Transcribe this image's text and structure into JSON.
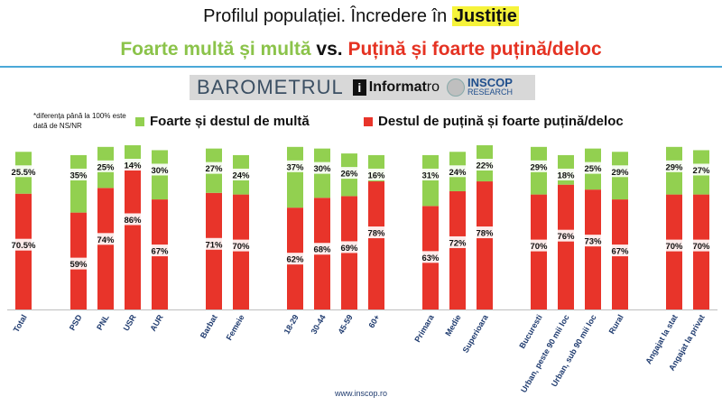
{
  "header": {
    "title_prefix": "Profilul populației. Încredere în",
    "title_highlight": "Justiție",
    "subtitle_green": "Foarte multă și multă",
    "subtitle_vs": "vs.",
    "subtitle_red": "Puțină și foarte puțină/deloc"
  },
  "branding": {
    "barometrul": "BAROMETRUL",
    "informat_i": "i",
    "informat_name": "Informat",
    "informat_suffix": "ro",
    "inscop_name": "INSCOP",
    "inscop_sub": "RESEARCH"
  },
  "note": "*diferența până la 100% este dată de NS/NR",
  "footer_url": "www.inscop.ro",
  "colors": {
    "green": "#92d050",
    "red": "#e8342a",
    "rule": "#4aa8d8"
  },
  "chart_data": {
    "type": "bar",
    "stacked": true,
    "ylim": [
      0,
      100
    ],
    "categories": [
      "Total",
      "PSD",
      "PNL",
      "USR",
      "AUR",
      "Barbat",
      "Femeie",
      "18-29",
      "30-44",
      "45-59",
      "60+",
      "Primara",
      "Medie",
      "Superioara",
      "Bucuresti",
      "Urban, peste 90 mii loc",
      "Urban, sub 90 mii loc",
      "Rural",
      "Angajat la stat",
      "Angajat la privat"
    ],
    "series": [
      {
        "name": "Destul de puțină și foarte puțină/deloc",
        "color": "#e8342a",
        "values": [
          70.5,
          59,
          74,
          86,
          67,
          71,
          70,
          62,
          68,
          69,
          78,
          63,
          72,
          78,
          70,
          76,
          73,
          67,
          70,
          70
        ],
        "labels": [
          "70.5%",
          "59%",
          "74%",
          "86%",
          "67%",
          "71%",
          "70%",
          "62%",
          "68%",
          "69%",
          "78%",
          "63%",
          "72%",
          "78%",
          "70%",
          "76%",
          "73%",
          "67%",
          "70%",
          "70%"
        ]
      },
      {
        "name": "Foarte și destul de multă",
        "color": "#92d050",
        "values": [
          25.5,
          35,
          25,
          14,
          30,
          27,
          24,
          37,
          30,
          26,
          16,
          31,
          24,
          22,
          29,
          18,
          25,
          29,
          29,
          27
        ],
        "labels": [
          "25.5%",
          "35%",
          "25%",
          "14%",
          "30%",
          "27%",
          "24%",
          "37%",
          "30%",
          "26%",
          "16%",
          "31%",
          "24%",
          "22%",
          "29%",
          "18%",
          "25%",
          "29%",
          "29%",
          "27%"
        ]
      }
    ],
    "legend": "top"
  }
}
